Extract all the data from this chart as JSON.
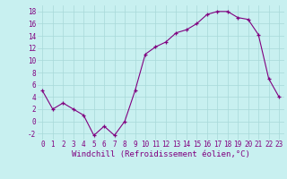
{
  "x": [
    0,
    1,
    2,
    3,
    4,
    5,
    6,
    7,
    8,
    9,
    10,
    11,
    12,
    13,
    14,
    15,
    16,
    17,
    18,
    19,
    20,
    21,
    22,
    23
  ],
  "y": [
    5,
    2,
    3,
    2,
    1,
    -2.3,
    -0.8,
    -2.3,
    0,
    5,
    11,
    12.2,
    13,
    14.5,
    15,
    16,
    17.5,
    18,
    18,
    17,
    16.7,
    14.2,
    7,
    4
  ],
  "line_color": "#800080",
  "marker": "+",
  "marker_color": "#800080",
  "bg_color": "#c8f0f0",
  "grid_color": "#a8d8d8",
  "xlabel": "Windchill (Refroidissement éolien,°C)",
  "xlabel_color": "#800080",
  "tick_color": "#800080",
  "ylim": [
    -3.0,
    19.0
  ],
  "yticks": [
    -2,
    0,
    2,
    4,
    6,
    8,
    10,
    12,
    14,
    16,
    18
  ],
  "xticks": [
    0,
    1,
    2,
    3,
    4,
    5,
    6,
    7,
    8,
    9,
    10,
    11,
    12,
    13,
    14,
    15,
    16,
    17,
    18,
    19,
    20,
    21,
    22,
    23
  ],
  "font_size": 5.5,
  "xlabel_font_size": 6.5,
  "xlim": [
    -0.5,
    23.5
  ]
}
